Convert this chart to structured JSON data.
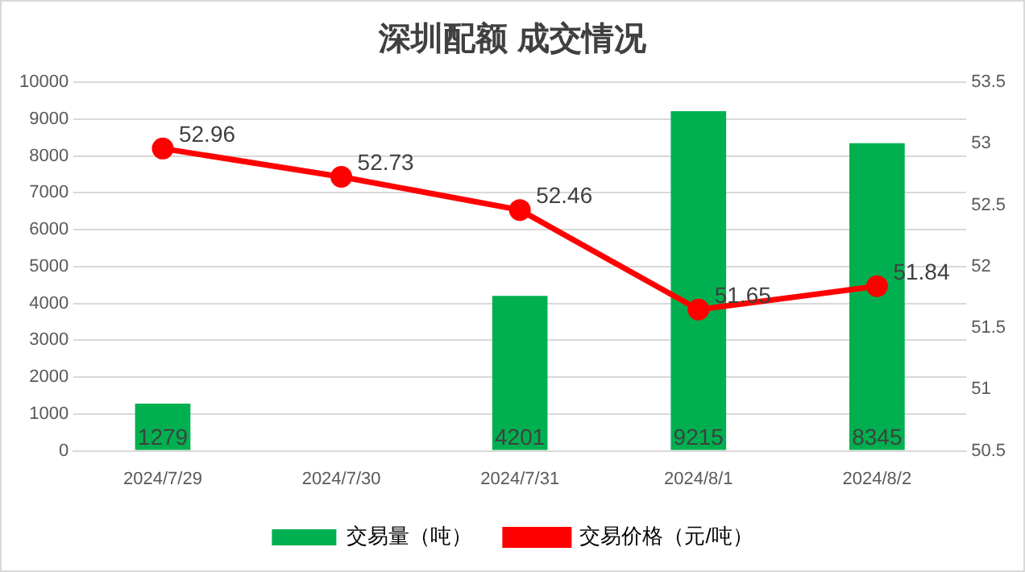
{
  "chart_data": {
    "type": "bar",
    "title": "深圳配额 成交情况",
    "categories": [
      "2024/7/29",
      "2024/7/30",
      "2024/7/31",
      "2024/8/1",
      "2024/8/2"
    ],
    "series": [
      {
        "name": "交易量（吨）",
        "color": "#00b050",
        "values": [
          1279,
          null,
          4201,
          9215,
          8345
        ]
      },
      {
        "name": "交易价格（元/吨）",
        "type": "line",
        "axis": "y2",
        "color": "#ff0000",
        "marker": "circle",
        "values": [
          52.96,
          52.73,
          52.46,
          51.65,
          51.84
        ]
      }
    ],
    "ylim": [
      0,
      10000
    ],
    "yticks": [
      0,
      1000,
      2000,
      3000,
      4000,
      5000,
      6000,
      7000,
      8000,
      9000,
      10000
    ],
    "y2lim": [
      50.5,
      53.5
    ],
    "y2ticks": [
      50.5,
      51,
      51.5,
      52,
      52.5,
      53,
      53.5
    ],
    "grid": "y",
    "legend": "bottom",
    "data_labels": true
  }
}
